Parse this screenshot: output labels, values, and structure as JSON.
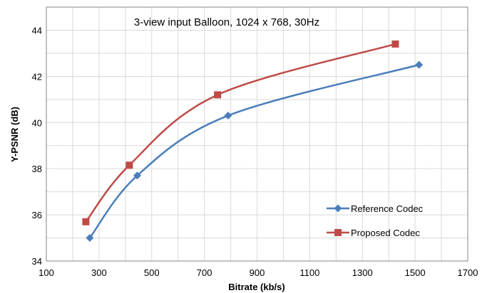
{
  "chart_data": {
    "type": "line",
    "title": "3-view input Balloon, 1024 x 768, 30Hz",
    "xlabel": "Bitrate (kb/s)",
    "ylabel": "Y-PSNR (dB)",
    "xlim": [
      100,
      1700
    ],
    "ylim": [
      34,
      45
    ],
    "xticks": [
      100,
      300,
      500,
      700,
      900,
      1100,
      1300,
      1500,
      1700
    ],
    "yticks": [
      34,
      36,
      38,
      40,
      42,
      44
    ],
    "grid": true,
    "legend_position": "bottom-right",
    "series": [
      {
        "name": "Reference Codec",
        "color": "#4a7ebb",
        "marker": "diamond",
        "x": [
          265,
          445,
          790,
          1515
        ],
        "y": [
          35.0,
          37.7,
          40.3,
          42.5
        ]
      },
      {
        "name": "Proposed Codec",
        "color": "#be4b48",
        "marker": "square",
        "x": [
          250,
          415,
          750,
          1425
        ],
        "y": [
          35.7,
          38.15,
          41.2,
          43.4
        ]
      }
    ]
  }
}
